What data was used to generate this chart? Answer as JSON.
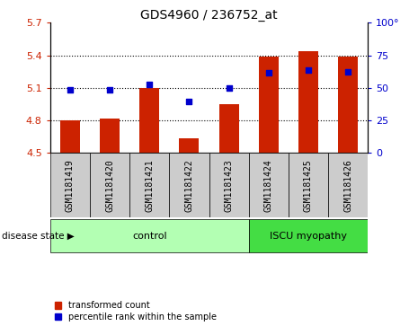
{
  "title": "GDS4960 / 236752_at",
  "samples": [
    "GSM1181419",
    "GSM1181420",
    "GSM1181421",
    "GSM1181422",
    "GSM1181423",
    "GSM1181424",
    "GSM1181425",
    "GSM1181426"
  ],
  "bar_values": [
    4.8,
    4.82,
    5.1,
    4.63,
    4.95,
    5.39,
    5.44,
    5.39
  ],
  "bar_base": 4.5,
  "scatter_values": [
    5.08,
    5.08,
    5.13,
    4.97,
    5.1,
    5.24,
    5.26,
    5.25
  ],
  "ylim": [
    4.5,
    5.7
  ],
  "yticks": [
    4.5,
    4.8,
    5.1,
    5.4,
    5.7
  ],
  "right_yticks": [
    0,
    25,
    50,
    75,
    100
  ],
  "right_ylim": [
    0,
    100
  ],
  "bar_color": "#cc2200",
  "scatter_color": "#0000cc",
  "tick_color_left": "#cc2200",
  "tick_color_right": "#0000cc",
  "control_group": [
    0,
    1,
    2,
    3,
    4
  ],
  "disease_group": [
    5,
    6,
    7
  ],
  "control_label": "control",
  "disease_label": "ISCU myopathy",
  "control_bg": "#b3ffb3",
  "disease_bg": "#44dd44",
  "sample_bg": "#cccccc",
  "disease_state_label": "disease state",
  "legend_bar_label": "transformed count",
  "legend_scatter_label": "percentile rank within the sample",
  "title_fontsize": 10,
  "axis_fontsize": 8,
  "sample_fontsize": 7
}
